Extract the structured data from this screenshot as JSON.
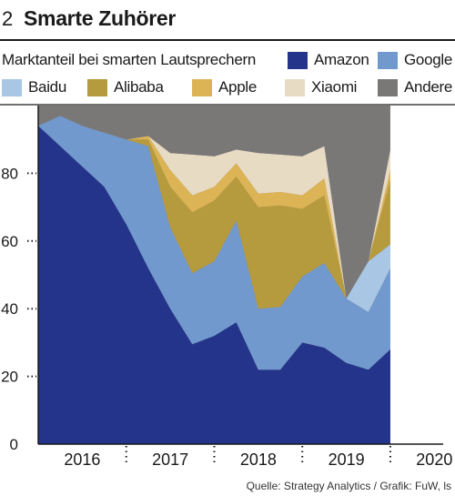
{
  "header": {
    "number": "2",
    "title": "Smarte Zuhörer"
  },
  "chart_data": {
    "type": "area",
    "stacked": true,
    "subtitle": "Marktanteil bei smarten Lautsprechern",
    "x_unit": "quarter",
    "x": [
      "2016-Q1",
      "2016-Q2",
      "2016-Q3",
      "2016-Q4",
      "2017-Q1",
      "2017-Q2",
      "2017-Q3",
      "2017-Q4",
      "2018-Q1",
      "2018-Q2",
      "2018-Q3",
      "2018-Q4",
      "2019-Q1",
      "2019-Q2",
      "2019-Q3",
      "2019-Q4",
      "2020-Q1"
    ],
    "year_labels": [
      "2016",
      "2017",
      "2018",
      "2019",
      "2020"
    ],
    "ylim": [
      0,
      100
    ],
    "yticks": [
      0,
      20,
      40,
      60,
      80
    ],
    "series": [
      {
        "name": "Amazon",
        "color": "#24348a",
        "values": [
          94,
          88,
          82,
          76,
          65,
          52,
          40,
          29.5,
          32,
          36,
          22,
          22,
          30,
          28.5,
          24,
          22,
          28
        ]
      },
      {
        "name": "Google",
        "color": "#7199cd",
        "values": [
          0,
          9,
          12,
          16,
          25,
          36,
          24,
          21,
          22,
          30,
          18,
          18.5,
          19.5,
          25,
          19,
          17,
          24
        ]
      },
      {
        "name": "Baidu",
        "color": "#a9c6e4",
        "values": [
          0,
          0,
          0,
          0,
          0,
          0,
          0,
          0,
          0,
          0,
          0,
          0,
          0,
          0,
          0,
          15,
          7
        ]
      },
      {
        "name": "Alibaba",
        "color": "#b69b3e",
        "values": [
          0,
          0,
          0,
          0,
          0,
          2,
          12,
          18,
          18,
          13,
          30,
          30,
          20,
          20,
          0,
          0,
          19
        ]
      },
      {
        "name": "Apple",
        "color": "#dcb456",
        "values": [
          0,
          0,
          0,
          0,
          0,
          1,
          5,
          5,
          4,
          4,
          4,
          4,
          4,
          5,
          0,
          0,
          3
        ]
      },
      {
        "name": "Xiaomi",
        "color": "#e8dbc4",
        "values": [
          0,
          0,
          0,
          0,
          0,
          0,
          5,
          12,
          9,
          4,
          12,
          11,
          11.5,
          9.5,
          0,
          0,
          6
        ]
      },
      {
        "name": "Andere",
        "color": "#7a7877",
        "values": [
          6,
          3,
          6,
          8,
          10,
          9,
          14,
          14.5,
          15,
          13,
          14,
          14.5,
          15,
          12,
          57,
          46,
          13
        ]
      }
    ]
  },
  "source": "Quelle: Strategy Analytics / Grafik: FuW, ls"
}
